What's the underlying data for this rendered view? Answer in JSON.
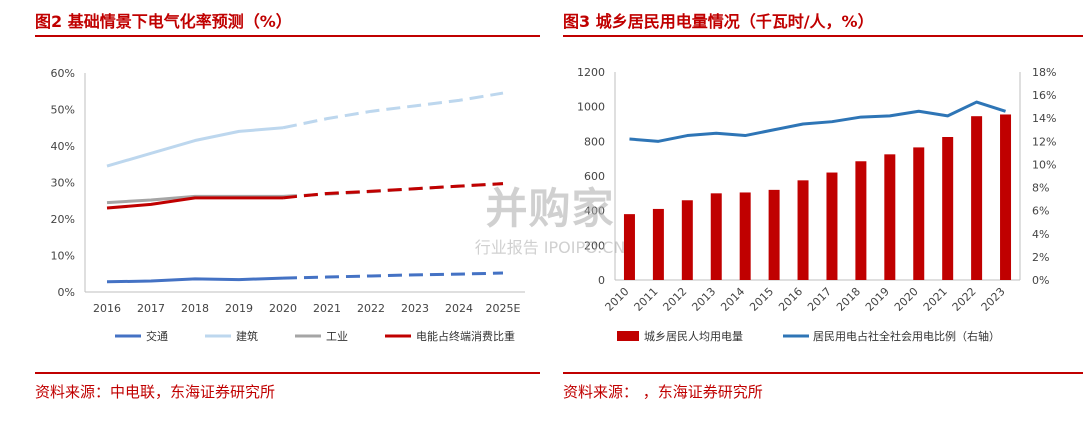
{
  "watermark": {
    "main": "并购家",
    "sub": "行业报告 IPOIPO.CN"
  },
  "charts": {
    "left": {
      "title": "图2 基础情景下电气化率预测（%）",
      "source": "资料来源：中电联，东海证券研究所"
    },
    "right": {
      "title": "图3 城乡居民用电量情况（千瓦时/人，%）",
      "source": "资料来源：       ，东海证券研究所"
    }
  },
  "chart_data": [
    {
      "type": "line",
      "title": "图2 基础情景下电气化率预测（%）",
      "x": [
        "2016",
        "2017",
        "2018",
        "2019",
        "2020",
        "2021",
        "2022",
        "2023",
        "2024",
        "2025E"
      ],
      "ylim": [
        0,
        60
      ],
      "y_ticks": [
        "0%",
        "10%",
        "20%",
        "30%",
        "40%",
        "50%",
        "60%"
      ],
      "actual_until": "2020",
      "projection_style": "dashed after 2020",
      "series": [
        {
          "name": "交通",
          "color": "#4472c4",
          "values": [
            2.8,
            3.0,
            3.6,
            3.4,
            3.8,
            4.1,
            4.4,
            4.7,
            4.9,
            5.2
          ]
        },
        {
          "name": "建筑",
          "color": "#bdd7ee",
          "values": [
            34.5,
            38,
            41.5,
            44,
            45,
            47.5,
            49.5,
            51,
            52.5,
            54.5
          ]
        },
        {
          "name": "工业",
          "color": "#a5a5a5",
          "values": [
            24.5,
            25.2,
            26.2,
            26.2,
            26.2,
            26.8,
            27.5,
            28.3,
            29.0,
            29.7
          ]
        },
        {
          "name": "电能占终端消费比重",
          "color": "#c00000",
          "values": [
            23.0,
            24.0,
            25.8,
            25.8,
            25.8,
            27.0,
            27.6,
            28.3,
            29.0,
            29.7
          ]
        }
      ],
      "legend_position": "bottom"
    },
    {
      "type": "bar",
      "title": "图3 城乡居民用电量情况（千瓦时/人，%）",
      "categories": [
        "2010",
        "2011",
        "2012",
        "2013",
        "2014",
        "2015",
        "2016",
        "2017",
        "2018",
        "2019",
        "2020",
        "2021",
        "2022",
        "2023"
      ],
      "ylim": [
        0,
        1200
      ],
      "y_ticks": [
        "0",
        "200",
        "400",
        "600",
        "800",
        "1000",
        "1200"
      ],
      "y2lim": [
        0,
        18
      ],
      "y2_ticks": [
        "0%",
        "2%",
        "4%",
        "6%",
        "8%",
        "10%",
        "12%",
        "14%",
        "16%",
        "18%"
      ],
      "series": [
        {
          "name": "城乡居民人均用电量",
          "type": "bar",
          "axis": "left",
          "color": "#c00000",
          "values": [
            380,
            410,
            460,
            500,
            505,
            520,
            575,
            620,
            685,
            725,
            765,
            825,
            945,
            955
          ]
        },
        {
          "name": "居民用电占社全社会用电比例（右轴）",
          "type": "line",
          "axis": "right",
          "color": "#2e75b6",
          "values": [
            12.2,
            12.0,
            12.5,
            12.7,
            12.5,
            13.0,
            13.5,
            13.7,
            14.1,
            14.2,
            14.6,
            14.2,
            15.4,
            14.6
          ]
        }
      ],
      "legend_position": "bottom"
    }
  ]
}
